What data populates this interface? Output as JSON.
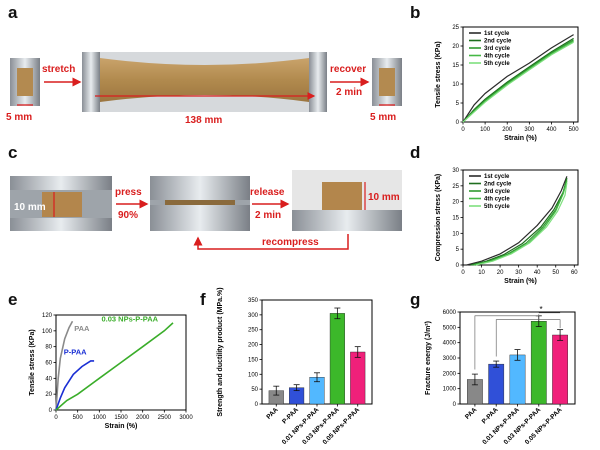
{
  "panels": {
    "a": {
      "label": "a",
      "stretch_label": "stretch",
      "recover_label": "recover",
      "recover_time": "2 min",
      "length_left": "5 mm",
      "length_middle": "138 mm",
      "length_right": "5 mm"
    },
    "c": {
      "label": "c",
      "press_label": "press",
      "press_pct": "90%",
      "release_label": "release",
      "release_time": "2 min",
      "recompress_label": "recompress",
      "height_left": "10 mm",
      "height_right": "10 mm"
    },
    "b": {
      "label": "b"
    },
    "d": {
      "label": "d"
    },
    "e": {
      "label": "e"
    },
    "f": {
      "label": "f"
    },
    "g": {
      "label": "g"
    }
  },
  "colors": {
    "cycle1": "#2b2b2b",
    "cycle2": "#1f6e1f",
    "cycle3": "#2f9a2f",
    "cycle4": "#45b845",
    "cycle5": "#7fe07f",
    "paa": "#8a8a8a",
    "ppaa": "#1a2fd4",
    "np003": "#3aad2a",
    "bar_f": [
      "#888888",
      "#3050d8",
      "#52b8ff",
      "#3cb82a",
      "#f0207a"
    ],
    "arrow": "#d91e1e"
  },
  "chart_data": [
    {
      "id": "b",
      "type": "line",
      "title": "",
      "xlabel": "Strain (%)",
      "ylabel": "Tensile stress (KPa)",
      "xlim": [
        0,
        520
      ],
      "ylim": [
        0,
        25
      ],
      "xticks": [
        0,
        100,
        200,
        300,
        400,
        500
      ],
      "yticks": [
        0,
        5,
        10,
        15,
        20,
        25
      ],
      "legend": "top-left",
      "series": [
        {
          "name": "1st cycle",
          "x": [
            0,
            50,
            100,
            200,
            300,
            400,
            500
          ],
          "y": [
            0,
            4.5,
            7.5,
            12,
            15.5,
            19.5,
            23
          ]
        },
        {
          "name": "2nd cycle",
          "x": [
            0,
            50,
            100,
            200,
            300,
            400,
            500
          ],
          "y": [
            0,
            3.3,
            6,
            10.5,
            14.5,
            18.5,
            22
          ]
        },
        {
          "name": "3rd cycle",
          "x": [
            0,
            50,
            100,
            200,
            300,
            400,
            500
          ],
          "y": [
            0,
            3,
            5.7,
            10.2,
            14.2,
            18.2,
            21.6
          ]
        },
        {
          "name": "4th cycle",
          "x": [
            0,
            50,
            100,
            200,
            300,
            400,
            500
          ],
          "y": [
            0,
            2.8,
            5.4,
            9.9,
            13.9,
            17.9,
            21.3
          ]
        },
        {
          "name": "5th cycle",
          "x": [
            0,
            50,
            100,
            200,
            300,
            400,
            500
          ],
          "y": [
            0,
            2.6,
            5.2,
            9.7,
            13.7,
            17.7,
            21
          ]
        }
      ]
    },
    {
      "id": "d",
      "type": "line",
      "title": "",
      "xlabel": "Strain (%)",
      "ylabel": "Compression stress (KPa)",
      "xlim": [
        0,
        62
      ],
      "ylim": [
        0,
        30
      ],
      "xticks": [
        0,
        10,
        20,
        30,
        40,
        50,
        60
      ],
      "yticks": [
        0,
        5,
        10,
        15,
        20,
        25,
        30
      ],
      "legend": "top-left",
      "series": [
        {
          "name": "1st cycle",
          "x": [
            2,
            10,
            20,
            30,
            40,
            48,
            53,
            56
          ],
          "y": [
            0,
            1.2,
            3.5,
            7,
            12.5,
            18,
            23.5,
            28
          ]
        },
        {
          "name": "2nd cycle",
          "x": [
            4,
            12,
            22,
            32,
            42,
            49,
            54,
            56
          ],
          "y": [
            0,
            1.1,
            3.3,
            6.8,
            12,
            17.5,
            23,
            27.5
          ]
        },
        {
          "name": "3rd cycle",
          "x": [
            5,
            14,
            24,
            34,
            43,
            50,
            54,
            56
          ],
          "y": [
            0,
            1.2,
            3.4,
            6.9,
            12,
            17.5,
            23,
            27
          ]
        },
        {
          "name": "4th cycle",
          "x": [
            6,
            15,
            25,
            35,
            44,
            50,
            54,
            56
          ],
          "y": [
            0,
            1.2,
            3.4,
            6.8,
            12,
            17,
            22.5,
            26.5
          ]
        },
        {
          "name": "5th cycle",
          "x": [
            7,
            16,
            26,
            36,
            45,
            51,
            55,
            56
          ],
          "y": [
            0,
            1.2,
            3.5,
            7,
            12,
            17,
            22,
            26
          ]
        }
      ]
    },
    {
      "id": "e",
      "type": "line",
      "title": "",
      "xlabel": "Strain (%)",
      "ylabel": "Tensile stress (KPa)",
      "xlim": [
        0,
        3000
      ],
      "ylim": [
        0,
        120
      ],
      "xticks": [
        0,
        500,
        1000,
        1500,
        2000,
        2500,
        3000
      ],
      "yticks": [
        0,
        20,
        40,
        60,
        80,
        100,
        120
      ],
      "series": [
        {
          "name": "PAA",
          "x": [
            0,
            50,
            100,
            200,
            300,
            380
          ],
          "y": [
            0,
            40,
            65,
            90,
            104,
            112
          ]
        },
        {
          "name": "P-PAA",
          "x": [
            0,
            100,
            200,
            400,
            600,
            800,
            880
          ],
          "y": [
            0,
            15,
            28,
            45,
            55,
            62,
            62
          ]
        },
        {
          "name": "0.03 NPs-P-PAA",
          "x": [
            0,
            250,
            500,
            1000,
            1500,
            2000,
            2500,
            2700
          ],
          "y": [
            0,
            12,
            20,
            40,
            60,
            80,
            100,
            110
          ]
        }
      ]
    },
    {
      "id": "f",
      "type": "bar",
      "title": "",
      "xlabel": "",
      "ylabel": "Strength and ductility product (MPa.%)",
      "ylim": [
        0,
        350
      ],
      "yticks": [
        0,
        50,
        100,
        150,
        200,
        250,
        300,
        350
      ],
      "categories": [
        "PAA",
        "P-PAA",
        "0.01 NPs-P-PAA",
        "0.03 NPs-P-PAA",
        "0.05 NPs-P-PAA"
      ],
      "values": [
        45,
        55,
        90,
        305,
        175
      ],
      "errors": [
        15,
        10,
        15,
        18,
        18
      ]
    },
    {
      "id": "g",
      "type": "bar",
      "title": "",
      "xlabel": "",
      "ylabel": "Fracture energy (J/m²)",
      "ylim": [
        0,
        6000
      ],
      "yticks": [
        0,
        1000,
        2000,
        3000,
        4000,
        5000,
        6000
      ],
      "categories": [
        "PAA",
        "P-PAA",
        "0.01 NPs-P-PAA",
        "0.03 NPs-P-PAA",
        "0.05 NPs-P-PAA"
      ],
      "values": [
        1600,
        2600,
        3200,
        5400,
        4500
      ],
      "errors": [
        350,
        200,
        350,
        350,
        350
      ],
      "annotation": "*"
    }
  ]
}
